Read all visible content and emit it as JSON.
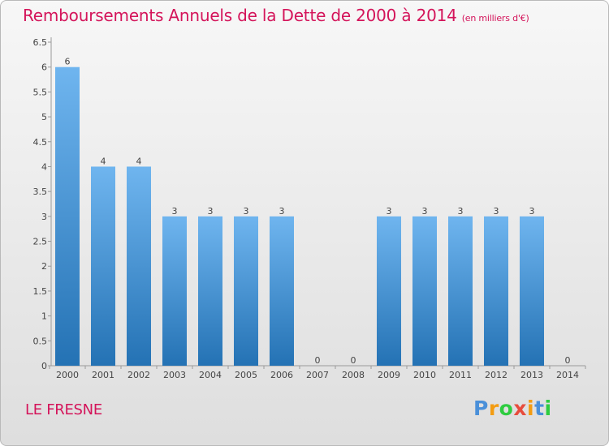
{
  "header": {
    "title": "Remboursements Annuels de la Dette de 2000 à 2014",
    "unit": "(en milliers d'€)"
  },
  "footer": {
    "commune": "LE FRESNE",
    "brand": "Proxiti"
  },
  "colors": {
    "title": "#d4145a",
    "bar_top": "#6fb5ef",
    "bar_bottom": "#2472b4",
    "brand_letters": [
      "#4a90d9",
      "#f39c12",
      "#2ecc40",
      "#e74c3c",
      "#f39c12",
      "#4a90d9",
      "#2ecc40"
    ]
  },
  "chart_data": {
    "type": "bar",
    "categories": [
      "2000",
      "2001",
      "2002",
      "2003",
      "2004",
      "2005",
      "2006",
      "2007",
      "2008",
      "2009",
      "2010",
      "2011",
      "2012",
      "2013",
      "2014"
    ],
    "values": [
      6,
      4,
      4,
      3,
      3,
      3,
      3,
      0,
      0,
      3,
      3,
      3,
      3,
      3,
      0
    ],
    "data_labels": [
      "6",
      "4",
      "4",
      "3",
      "3",
      "3",
      "3",
      "0",
      "0",
      "3",
      "3",
      "3",
      "3",
      "3",
      "0"
    ],
    "y_ticks": [
      "0",
      "0.5",
      "1",
      "1.5",
      "2",
      "2.5",
      "3",
      "3.5",
      "4",
      "4.5",
      "5",
      "5.5",
      "6",
      "6.5"
    ],
    "ylim": [
      0,
      6.5
    ],
    "grid": false,
    "legend": "none"
  }
}
